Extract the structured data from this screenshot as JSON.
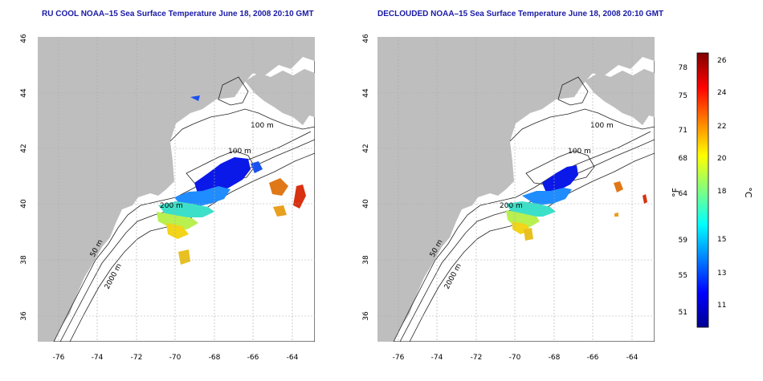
{
  "panels": [
    {
      "title": "RU COOL NOAA–15 Sea Surface Temperature June 18, 2008 20:10 GMT",
      "contour_labels": [
        "100 m",
        "100 m",
        "200 m",
        "50 m",
        "2000 m"
      ]
    },
    {
      "title": "DECLOUDED NOAA–15 Sea Surface Temperature June 18, 2008 20:10 GMT",
      "contour_labels": [
        "100 m",
        "100 m",
        "200 m",
        "50 m",
        "2000 m"
      ]
    }
  ],
  "axes": {
    "x_ticks": [
      "-76",
      "-74",
      "-72",
      "-70",
      "-68",
      "-66",
      "-64"
    ],
    "y_ticks": [
      "36",
      "38",
      "40",
      "42",
      "44",
      "46"
    ]
  },
  "colorbar": {
    "left_label": "°F",
    "right_label": "°C",
    "f_ticks": [
      "78",
      "75",
      "71",
      "68",
      "64",
      "59",
      "55",
      "51"
    ],
    "c_ticks": [
      "26",
      "24",
      "22",
      "20",
      "18",
      "15",
      "13",
      "11"
    ],
    "colors": [
      "#00008f",
      "#0000ff",
      "#0080ff",
      "#00ffff",
      "#80ff80",
      "#ffff00",
      "#ff8000",
      "#ff0000",
      "#800000"
    ]
  },
  "colors": {
    "land": "#bebebe",
    "title": "#1a1aa6"
  }
}
